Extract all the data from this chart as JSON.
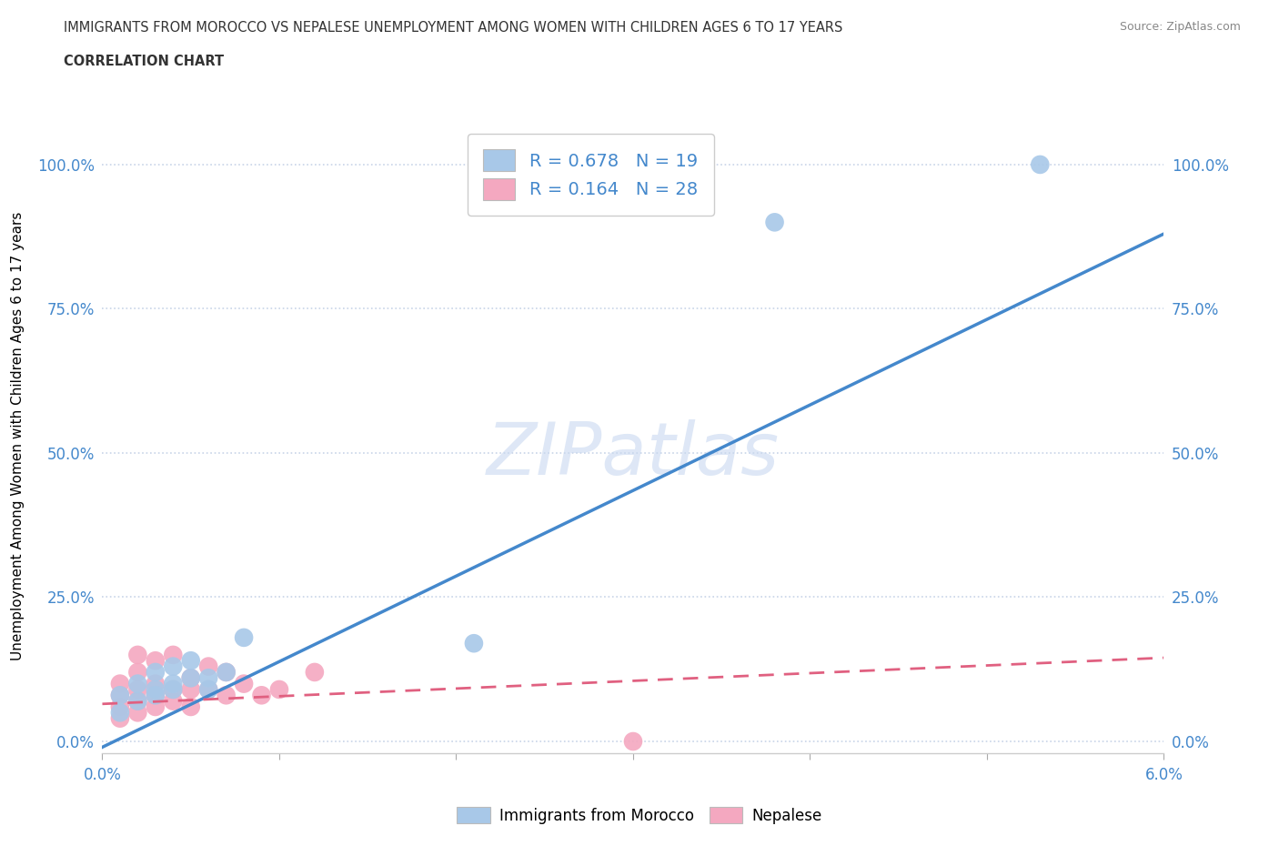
{
  "title_line1": "IMMIGRANTS FROM MOROCCO VS NEPALESE UNEMPLOYMENT AMONG WOMEN WITH CHILDREN AGES 6 TO 17 YEARS",
  "title_line2": "CORRELATION CHART",
  "source": "Source: ZipAtlas.com",
  "xlabel": "",
  "ylabel": "Unemployment Among Women with Children Ages 6 to 17 years",
  "xlim": [
    0.0,
    0.06
  ],
  "ylim": [
    -0.02,
    1.08
  ],
  "x_ticks": [
    0.0,
    0.01,
    0.02,
    0.03,
    0.04,
    0.05,
    0.06
  ],
  "x_tick_labels": [
    "0.0%",
    "",
    "",
    "",
    "",
    "",
    "6.0%"
  ],
  "y_ticks": [
    0.0,
    0.25,
    0.5,
    0.75,
    1.0
  ],
  "y_tick_labels": [
    "0.0%",
    "25.0%",
    "50.0%",
    "75.0%",
    "100.0%"
  ],
  "morocco_R": 0.678,
  "morocco_N": 19,
  "nepalese_R": 0.164,
  "nepalese_N": 28,
  "morocco_color": "#a8c8e8",
  "nepalese_color": "#f4a8c0",
  "morocco_line_color": "#4488cc",
  "nepalese_line_color": "#e06080",
  "watermark": "ZIPatlas",
  "legend_label_morocco": "Immigrants from Morocco",
  "legend_label_nepalese": "Nepalese",
  "morocco_points_x": [
    0.001,
    0.001,
    0.002,
    0.002,
    0.003,
    0.003,
    0.003,
    0.004,
    0.004,
    0.004,
    0.005,
    0.005,
    0.006,
    0.006,
    0.007,
    0.008,
    0.021,
    0.038,
    0.053
  ],
  "morocco_points_y": [
    0.05,
    0.08,
    0.07,
    0.1,
    0.09,
    0.12,
    0.08,
    0.1,
    0.13,
    0.09,
    0.11,
    0.14,
    0.11,
    0.09,
    0.12,
    0.18,
    0.17,
    0.9,
    1.0
  ],
  "nepalese_points_x": [
    0.001,
    0.001,
    0.001,
    0.001,
    0.002,
    0.002,
    0.002,
    0.002,
    0.002,
    0.003,
    0.003,
    0.003,
    0.003,
    0.004,
    0.004,
    0.004,
    0.005,
    0.005,
    0.005,
    0.006,
    0.006,
    0.007,
    0.007,
    0.008,
    0.009,
    0.01,
    0.012,
    0.03
  ],
  "nepalese_points_y": [
    0.04,
    0.06,
    0.08,
    0.1,
    0.05,
    0.07,
    0.09,
    0.12,
    0.15,
    0.06,
    0.08,
    0.1,
    0.14,
    0.07,
    0.09,
    0.15,
    0.06,
    0.09,
    0.11,
    0.09,
    0.13,
    0.08,
    0.12,
    0.1,
    0.08,
    0.09,
    0.12,
    0.0
  ],
  "morocco_line_x0": 0.0,
  "morocco_line_y0": -0.01,
  "morocco_line_x1": 0.06,
  "morocco_line_y1": 0.88,
  "nepalese_line_x0": 0.0,
  "nepalese_line_y0": 0.065,
  "nepalese_line_x1": 0.06,
  "nepalese_line_y1": 0.145,
  "background_color": "#ffffff",
  "grid_color": "#c8d4e8",
  "title_color": "#2c3e6b",
  "axis_label_color": "#4488cc"
}
